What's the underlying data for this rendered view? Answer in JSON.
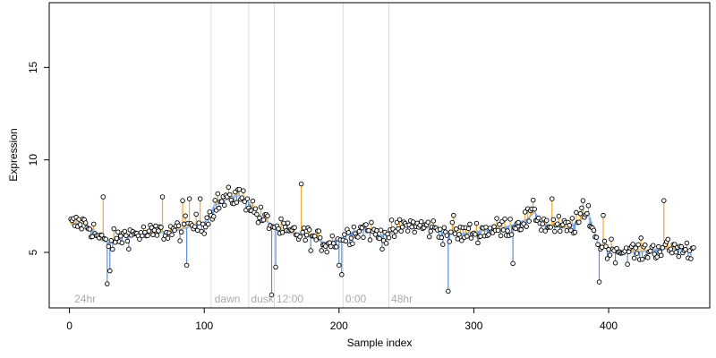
{
  "chart_data": {
    "type": "scatter",
    "title": "",
    "xlabel": "Sample index",
    "ylabel": "Expression",
    "xlim": [
      -15,
      475
    ],
    "ylim": [
      2.0,
      18.5
    ],
    "xticks": [
      0,
      100,
      200,
      300,
      400
    ],
    "yticks": [
      5,
      10,
      15
    ],
    "grid": false,
    "legend": "none",
    "colors": {
      "up_segment": "#f0a830",
      "down_segment": "#5b8fd8",
      "smooth_line": "#9dbde0",
      "point_fill": "#ffffff",
      "point_edge": "#000000",
      "divider": "#dddddd",
      "annotation": "#aaaaaa",
      "axis": "#000000"
    },
    "baseline_note": "each point joined to a smooth baseline; orange if above, blue if below",
    "dividers": [
      105,
      133,
      152,
      203,
      237
    ],
    "annotations": [
      {
        "x": 3,
        "text": "24hr"
      },
      {
        "x": 107,
        "text": "dawn"
      },
      {
        "x": 134,
        "text": "dusk"
      },
      {
        "x": 153,
        "text": "12:00"
      },
      {
        "x": 204,
        "text": "0:00"
      },
      {
        "x": 238,
        "text": "48hr"
      }
    ],
    "anchors": [
      [
        0,
        6.5
      ],
      [
        10,
        6.6
      ],
      [
        18,
        6.2
      ],
      [
        22,
        5.7
      ],
      [
        30,
        5.5
      ],
      [
        40,
        5.9
      ],
      [
        50,
        6.0
      ],
      [
        60,
        6.0
      ],
      [
        70,
        6.1
      ],
      [
        80,
        6.2
      ],
      [
        90,
        6.4
      ],
      [
        100,
        6.6
      ],
      [
        104,
        7.0
      ],
      [
        108,
        7.6
      ],
      [
        118,
        7.9
      ],
      [
        125,
        8.1
      ],
      [
        132,
        7.8
      ],
      [
        140,
        7.0
      ],
      [
        150,
        6.5
      ],
      [
        160,
        6.1
      ],
      [
        170,
        6.0
      ],
      [
        180,
        5.8
      ],
      [
        190,
        5.5
      ],
      [
        200,
        5.7
      ],
      [
        210,
        6.1
      ],
      [
        220,
        6.3
      ],
      [
        230,
        5.9
      ],
      [
        238,
        6.0
      ],
      [
        250,
        6.5
      ],
      [
        260,
        6.4
      ],
      [
        270,
        6.3
      ],
      [
        280,
        6.0
      ],
      [
        290,
        6.0
      ],
      [
        300,
        6.1
      ],
      [
        310,
        6.2
      ],
      [
        320,
        6.3
      ],
      [
        330,
        6.5
      ],
      [
        340,
        6.8
      ],
      [
        345,
        7.2
      ],
      [
        350,
        6.6
      ],
      [
        360,
        6.4
      ],
      [
        370,
        6.3
      ],
      [
        380,
        6.8
      ],
      [
        385,
        7.1
      ],
      [
        392,
        5.5
      ],
      [
        400,
        5.2
      ],
      [
        410,
        5.1
      ],
      [
        420,
        5.0
      ],
      [
        430,
        5.1
      ],
      [
        440,
        5.2
      ],
      [
        450,
        5.2
      ],
      [
        460,
        5.1
      ],
      [
        463,
        5.1
      ]
    ],
    "outliers": [
      {
        "x": 25,
        "y": 8.0
      },
      {
        "x": 28,
        "y": 3.3
      },
      {
        "x": 30,
        "y": 4.0
      },
      {
        "x": 69,
        "y": 8.0
      },
      {
        "x": 84,
        "y": 7.8
      },
      {
        "x": 87,
        "y": 4.3
      },
      {
        "x": 89,
        "y": 7.9
      },
      {
        "x": 97,
        "y": 7.9
      },
      {
        "x": 150,
        "y": 2.7
      },
      {
        "x": 153,
        "y": 4.2
      },
      {
        "x": 172,
        "y": 8.7
      },
      {
        "x": 200,
        "y": 4.3
      },
      {
        "x": 202,
        "y": 3.8
      },
      {
        "x": 281,
        "y": 2.9
      },
      {
        "x": 285,
        "y": 7.0
      },
      {
        "x": 329,
        "y": 4.4
      },
      {
        "x": 358,
        "y": 7.9
      },
      {
        "x": 381,
        "y": 7.8
      },
      {
        "x": 393,
        "y": 3.4
      },
      {
        "x": 396,
        "y": 7.0
      },
      {
        "x": 441,
        "y": 7.8
      }
    ]
  }
}
